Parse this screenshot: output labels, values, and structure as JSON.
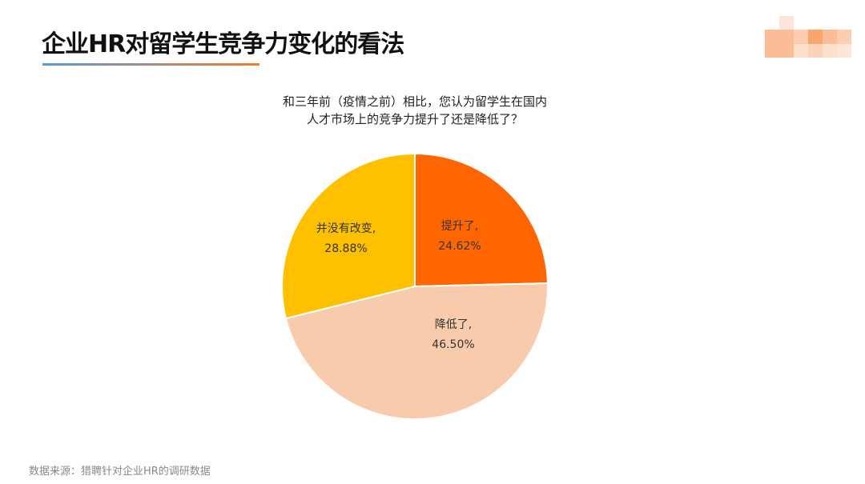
{
  "header": {
    "title": "企业HR对留学生竞争力变化的看法",
    "logo": "blurred logo"
  },
  "colors": {
    "raise": "#FF6600",
    "lower": "#F8CBAD",
    "nochange": "#FFC000"
  },
  "chart_data": {
    "type": "pie",
    "title_lines": [
      "和三年前（疫情之前）相比，您认为留学生在国内",
      "人才市场上的竞争力提升了还是降低了？"
    ],
    "start": "12 o'clock, clockwise",
    "slices": [
      {
        "label": "提升了,",
        "value": 24.62,
        "value_label": "24.62%",
        "color": "#FF6600"
      },
      {
        "label": "降低了,",
        "value": 46.5,
        "value_label": "46.50%",
        "color": "#F8CBAD"
      },
      {
        "label": "并没有改变,",
        "value": 28.88,
        "value_label": "28.88%",
        "color": "#FFC000"
      }
    ]
  },
  "footer": {
    "source": "数据来源：猎聘针对企业HR的调研数据"
  }
}
